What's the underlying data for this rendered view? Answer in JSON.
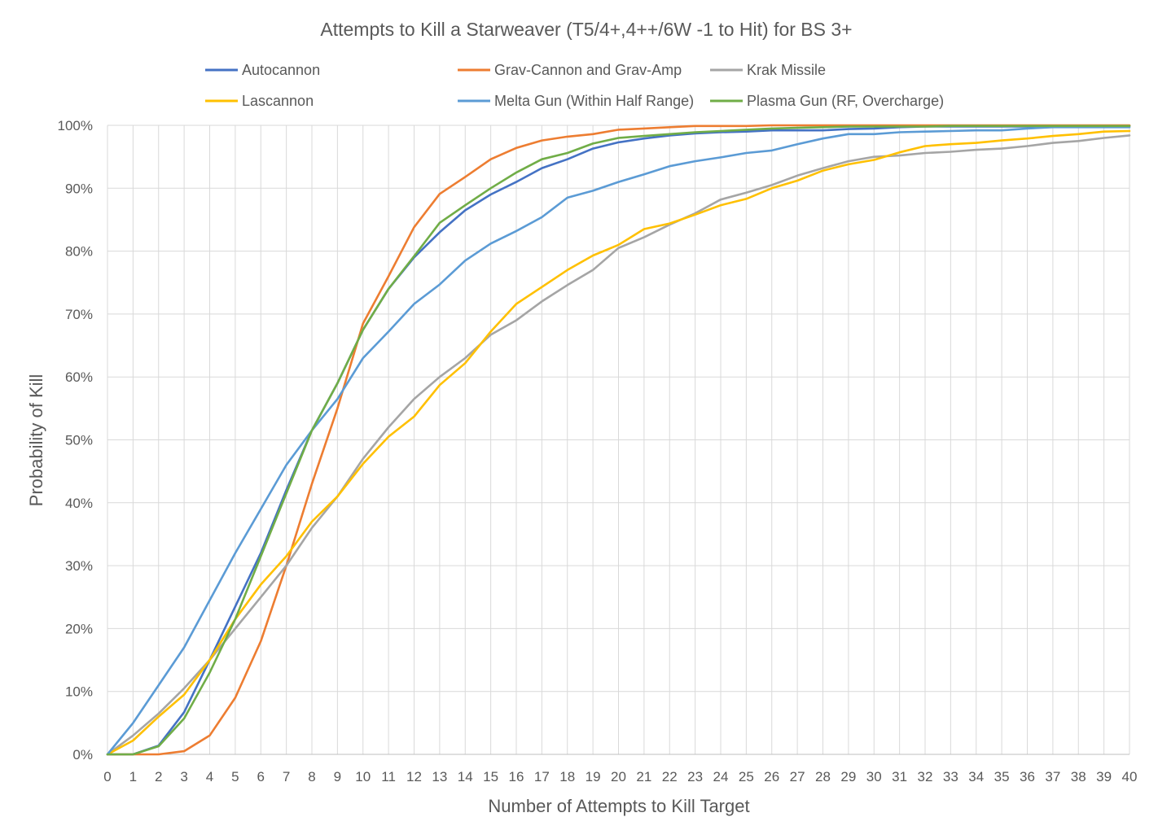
{
  "chart_data": {
    "type": "line",
    "title": "Attempts to Kill a Starweaver (T5/4+,4++/6W -1 to Hit) for BS 3+",
    "xlabel": "Number of Attempts to Kill Target",
    "ylabel": "Probability of Kill",
    "xlim": [
      0,
      40
    ],
    "ylim": [
      0,
      1
    ],
    "y_tick_format": "percent",
    "x_ticks": [
      0,
      1,
      2,
      3,
      4,
      5,
      6,
      7,
      8,
      9,
      10,
      11,
      12,
      13,
      14,
      15,
      16,
      17,
      18,
      19,
      20,
      21,
      22,
      23,
      24,
      25,
      26,
      27,
      28,
      29,
      30,
      31,
      32,
      33,
      34,
      35,
      36,
      37,
      38,
      39,
      40
    ],
    "y_ticks": [
      0,
      0.1,
      0.2,
      0.3,
      0.4,
      0.5,
      0.6,
      0.7,
      0.8,
      0.9,
      1.0
    ],
    "grid": true,
    "legend_position": "top",
    "x": [
      0,
      1,
      2,
      3,
      4,
      5,
      6,
      7,
      8,
      9,
      10,
      11,
      12,
      13,
      14,
      15,
      16,
      17,
      18,
      19,
      20,
      21,
      22,
      23,
      24,
      25,
      26,
      27,
      28,
      29,
      30,
      31,
      32,
      33,
      34,
      35,
      36,
      37,
      38,
      39,
      40
    ],
    "series": [
      {
        "name": "Autocannon",
        "color": "#4472C4",
        "values": [
          0,
          0,
          0.014,
          0.067,
          0.15,
          0.235,
          0.32,
          0.42,
          0.515,
          0.59,
          0.675,
          0.74,
          0.79,
          0.83,
          0.865,
          0.89,
          0.91,
          0.932,
          0.946,
          0.963,
          0.973,
          0.979,
          0.984,
          0.987,
          0.989,
          0.99,
          0.992,
          0.992,
          0.992,
          0.994,
          0.995,
          0.997,
          0.998,
          0.998,
          0.998,
          0.998,
          0.998,
          0.999,
          0.999,
          0.999,
          0.999
        ]
      },
      {
        "name": "Grav-Cannon and Grav-Amp",
        "color": "#ED7D31",
        "values": [
          0,
          0,
          0,
          0.005,
          0.03,
          0.09,
          0.18,
          0.3,
          0.43,
          0.55,
          0.685,
          0.76,
          0.838,
          0.891,
          0.918,
          0.946,
          0.964,
          0.976,
          0.982,
          0.986,
          0.993,
          0.995,
          0.997,
          0.999,
          0.999,
          0.999,
          1,
          1,
          1,
          1,
          1,
          1,
          1,
          1,
          1,
          1,
          1,
          1,
          1,
          1,
          1
        ]
      },
      {
        "name": "Krak Missile",
        "color": "#A5A5A5",
        "values": [
          0,
          0.03,
          0.065,
          0.105,
          0.15,
          0.2,
          0.25,
          0.3,
          0.36,
          0.41,
          0.47,
          0.52,
          0.565,
          0.6,
          0.63,
          0.667,
          0.69,
          0.72,
          0.746,
          0.77,
          0.805,
          0.822,
          0.842,
          0.86,
          0.882,
          0.893,
          0.905,
          0.92,
          0.932,
          0.943,
          0.95,
          0.952,
          0.956,
          0.958,
          0.961,
          0.963,
          0.967,
          0.972,
          0.975,
          0.98,
          0.984
        ]
      },
      {
        "name": "Lascannon",
        "color": "#FFC000",
        "values": [
          0,
          0.022,
          0.06,
          0.095,
          0.15,
          0.215,
          0.27,
          0.315,
          0.37,
          0.41,
          0.462,
          0.505,
          0.537,
          0.587,
          0.622,
          0.672,
          0.716,
          0.743,
          0.77,
          0.793,
          0.81,
          0.835,
          0.844,
          0.858,
          0.873,
          0.883,
          0.9,
          0.912,
          0.928,
          0.938,
          0.945,
          0.957,
          0.967,
          0.97,
          0.972,
          0.976,
          0.979,
          0.983,
          0.986,
          0.99,
          0.991
        ]
      },
      {
        "name": "Melta Gun (Within Half Range)",
        "color": "#5B9BD5",
        "values": [
          0,
          0.05,
          0.11,
          0.17,
          0.245,
          0.32,
          0.39,
          0.46,
          0.515,
          0.565,
          0.63,
          0.672,
          0.716,
          0.747,
          0.785,
          0.812,
          0.832,
          0.854,
          0.885,
          0.896,
          0.91,
          0.922,
          0.935,
          0.943,
          0.949,
          0.956,
          0.96,
          0.97,
          0.979,
          0.986,
          0.986,
          0.989,
          0.99,
          0.991,
          0.992,
          0.992,
          0.995,
          0.997,
          0.997,
          0.997,
          0.997
        ]
      },
      {
        "name": "Plasma Gun (RF, Overcharge)",
        "color": "#70AD47",
        "values": [
          0,
          0,
          0.013,
          0.057,
          0.13,
          0.215,
          0.315,
          0.415,
          0.515,
          0.59,
          0.675,
          0.74,
          0.792,
          0.845,
          0.873,
          0.9,
          0.925,
          0.946,
          0.956,
          0.971,
          0.98,
          0.983,
          0.986,
          0.989,
          0.991,
          0.993,
          0.995,
          0.996,
          0.997,
          0.998,
          0.998,
          0.998,
          0.998,
          0.999,
          0.999,
          0.999,
          0.999,
          0.999,
          0.999,
          0.999,
          0.999
        ]
      }
    ]
  }
}
